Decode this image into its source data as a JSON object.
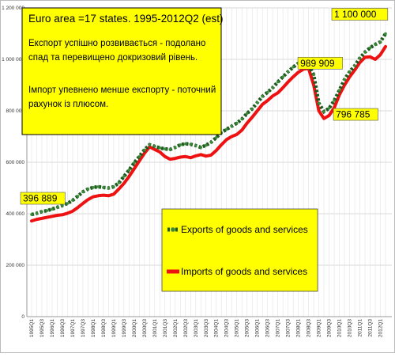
{
  "chart_data": {
    "type": "line",
    "title_box": {
      "title": "Euro area =17 states. 1995-2012Q2 (est)",
      "lines": [
        "Експорт успішно розвивається - подолано",
        "спад та перевищено докризовий рівень.",
        "",
        "Імпорт упевнено менше експорту - поточний",
        "рахунок із плюсом."
      ]
    },
    "ylim": [
      0,
      1200000
    ],
    "yticks": [
      {
        "value": 0,
        "label": "0"
      },
      {
        "value": 200000,
        "label": "200 000"
      },
      {
        "value": 400000,
        "label": "400 000"
      },
      {
        "value": 600000,
        "label": "600 000"
      },
      {
        "value": 800000,
        "label": "800 000"
      },
      {
        "value": 1000000,
        "label": "1 000 000"
      },
      {
        "value": 1200000,
        "label": "1 200 000"
      }
    ],
    "x": [
      "1995Q1",
      "1995Q2",
      "1995Q3",
      "1995Q4",
      "1996Q1",
      "1996Q2",
      "1996Q3",
      "1996Q4",
      "1997Q1",
      "1997Q2",
      "1997Q3",
      "1997Q4",
      "1998Q1",
      "1998Q2",
      "1998Q3",
      "1998Q4",
      "1999Q1",
      "1999Q2",
      "1999Q3",
      "1999Q4",
      "2000Q1",
      "2000Q2",
      "2000Q3",
      "2000Q4",
      "2001Q1",
      "2001Q2",
      "2001Q3",
      "2001Q4",
      "2002Q1",
      "2002Q2",
      "2002Q3",
      "2002Q4",
      "2003Q1",
      "2003Q2",
      "2003Q3",
      "2003Q4",
      "2004Q1",
      "2004Q2",
      "2004Q3",
      "2004Q4",
      "2005Q1",
      "2005Q2",
      "2005Q3",
      "2005Q4",
      "2006Q1",
      "2006Q2",
      "2006Q3",
      "2006Q4",
      "2007Q1",
      "2007Q2",
      "2007Q3",
      "2007Q4",
      "2008Q1",
      "2008Q2",
      "2008Q3",
      "2008Q4",
      "2009Q1",
      "2009Q2",
      "2009Q3",
      "2009Q4",
      "2010Q1",
      "2010Q2",
      "2010Q3",
      "2010Q4",
      "2011Q1",
      "2011Q2",
      "2011Q3",
      "2011Q4",
      "2012Q1",
      "2012Q2"
    ],
    "xtick_labels": [
      "1995Q1",
      "1995Q3",
      "1996Q1",
      "1996Q3",
      "1997Q1",
      "1997Q3",
      "1998Q1",
      "1998Q3",
      "1999Q1",
      "1999Q3",
      "2000Q1",
      "2000Q3",
      "2001Q1",
      "2001Q3",
      "2002Q1",
      "2002Q3",
      "2003Q1",
      "2003Q3",
      "2004Q1",
      "2004Q3",
      "2005Q1",
      "2005Q3",
      "2006Q1",
      "2006Q3",
      "2007Q1",
      "2007Q3",
      "2008Q1",
      "2008Q3",
      "2009Q1",
      "2009Q3",
      "2010Q1",
      "2010Q3",
      "2011Q1",
      "2011Q3",
      "2012Q1"
    ],
    "series": [
      {
        "name": "Exports of goods and services",
        "color": "#1e5a1e",
        "marker_color": "#3a8a3a",
        "values": [
          396889,
          402000,
          408000,
          412000,
          418000,
          425000,
          432000,
          440000,
          452000,
          468000,
          485000,
          496000,
          502000,
          505000,
          502000,
          500000,
          505000,
          520000,
          545000,
          570000,
          598000,
          622000,
          648000,
          668000,
          662000,
          656000,
          652000,
          650000,
          658000,
          668000,
          672000,
          670000,
          665000,
          658000,
          666000,
          678000,
          696000,
          715000,
          728000,
          740000,
          752000,
          768000,
          790000,
          808000,
          832000,
          856000,
          872000,
          890000,
          912000,
          932000,
          952000,
          970000,
          985000,
          989909,
          978000,
          940000,
          830000,
          796785,
          810000,
          840000,
          880000,
          922000,
          952000,
          975000,
          1005000,
          1028000,
          1045000,
          1058000,
          1068000,
          1100000
        ]
      },
      {
        "name": "Imports of goods and services",
        "color": "#ee1111",
        "values": [
          372000,
          378000,
          382000,
          386000,
          390000,
          394000,
          396000,
          402000,
          410000,
          424000,
          440000,
          455000,
          466000,
          470000,
          472000,
          470000,
          476000,
          496000,
          518000,
          545000,
          575000,
          605000,
          635000,
          660000,
          650000,
          640000,
          622000,
          612000,
          615000,
          620000,
          622000,
          618000,
          625000,
          630000,
          624000,
          628000,
          646000,
          668000,
          688000,
          700000,
          708000,
          725000,
          752000,
          775000,
          800000,
          825000,
          840000,
          858000,
          870000,
          890000,
          912000,
          932000,
          950000,
          962000,
          965000,
          900000,
          800000,
          770000,
          782000,
          812000,
          862000,
          900000,
          932000,
          958000,
          988000,
          1008000,
          1010000,
          1000000,
          1018000,
          1050000
        ]
      }
    ],
    "annotations": [
      {
        "text": "396 889",
        "x": "1995Q1",
        "value": 396889
      },
      {
        "text": "989 909",
        "x": "2008Q2",
        "value": 989909
      },
      {
        "text": "796 785",
        "x": "2009Q2",
        "value": 796785
      },
      {
        "text": "1 100 000",
        "x": "2012Q2",
        "value": 1100000
      }
    ],
    "legend": {
      "placement": "center-right"
    },
    "grid": true,
    "colors": {
      "annotation_bg": "#ffff00",
      "title_box_bg": "#ffff00",
      "legend_bg": "#ffff00"
    }
  }
}
